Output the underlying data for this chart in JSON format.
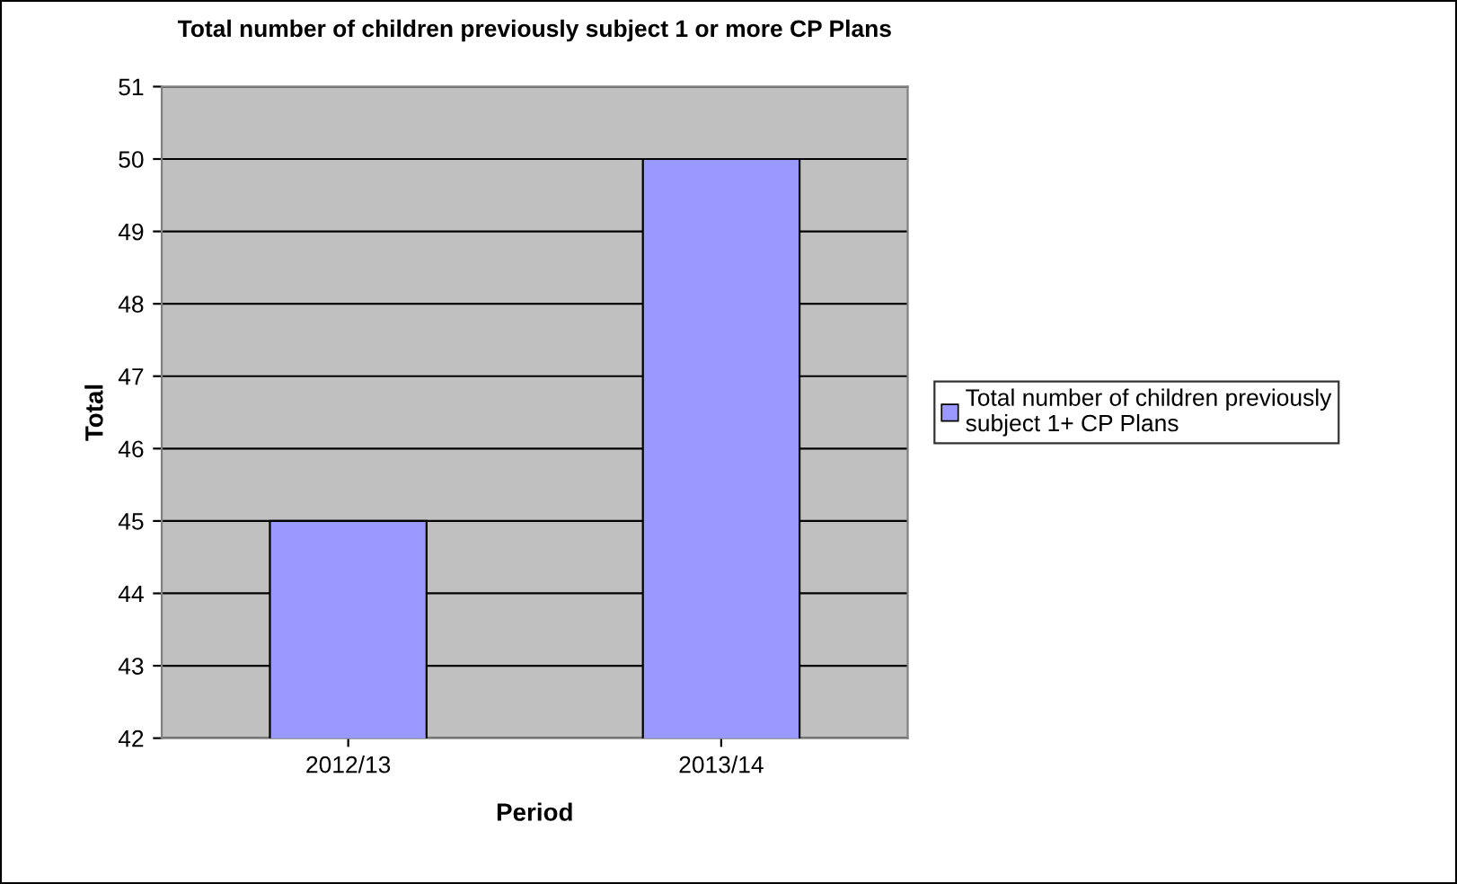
{
  "chart_data": {
    "type": "bar",
    "title": "Total number of children previously subject 1 or more CP Plans",
    "xlabel": "Period",
    "ylabel": "Total",
    "categories": [
      "2012/13",
      "2013/14"
    ],
    "series": [
      {
        "name": "Total number of children previously subject 1+ CP Plans",
        "color": "#9999ff",
        "values": [
          45,
          50
        ]
      }
    ],
    "ylim": [
      42,
      51
    ],
    "yticks": [
      42,
      43,
      44,
      45,
      46,
      47,
      48,
      49,
      50,
      51
    ],
    "grid": "y",
    "legend": "right"
  }
}
